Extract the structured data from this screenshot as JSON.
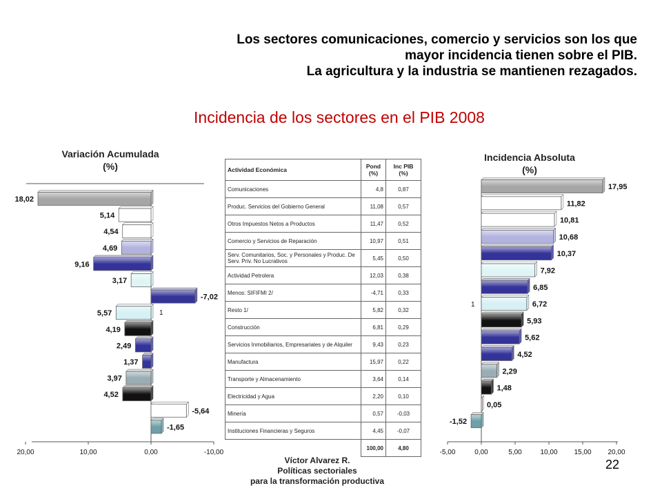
{
  "headline": [
    "Los sectores comunicaciones, comercio y servicios son los que",
    "mayor incidencia tienen sobre el PIB.",
    "La agricultura y la industria se mantienen rezagados."
  ],
  "subtitle": "Incidencia de los sectores en el PIB 2008",
  "chart_data": [
    {
      "type": "bar",
      "orientation": "horizontal",
      "title": "Variación Acumulada (%)",
      "x_axis_reversed": true,
      "xlim": [
        -10,
        20
      ],
      "tick_labels": [
        "20,00",
        "10,00",
        "0,00",
        "-10,00"
      ],
      "series_label": "1",
      "value_labels": [
        "18,02",
        "5,14",
        "4,54",
        "4,69",
        "9,16",
        "3,17",
        "-7,02",
        "5,57",
        "4,19",
        "2,49",
        "1,37",
        "3,97",
        "4,52",
        "-5,64",
        "-1,65"
      ],
      "values": [
        18.02,
        5.14,
        4.54,
        4.69,
        9.16,
        3.17,
        -7.02,
        5.57,
        4.19,
        2.49,
        1.37,
        3.97,
        4.52,
        -5.64,
        -1.65
      ],
      "colors": [
        "#a6a6a6",
        "#ffffff",
        "#ffffff",
        "#b3b3df",
        "#333399",
        "#dff5f5",
        "#333399",
        "#d6f0f4",
        "#111111",
        "#333399",
        "#333399",
        "#9aacb4",
        "#111111",
        "#ffffff",
        "#6f9fa9"
      ]
    },
    {
      "type": "bar",
      "orientation": "horizontal",
      "title": "Incidencia Absoluta (%)",
      "xlim": [
        -5,
        20
      ],
      "tick_labels": [
        "-5,00",
        "0,00",
        "5,00",
        "10,00",
        "15,00",
        "20,00"
      ],
      "series_label": "1",
      "value_labels": [
        "17,95",
        "11,82",
        "10,81",
        "10,68",
        "10,37",
        "7,92",
        "6,85",
        "6,72",
        "5,93",
        "5,62",
        "4,52",
        "2,29",
        "1,48",
        "0,05",
        "-1,52"
      ],
      "values": [
        17.95,
        11.82,
        10.81,
        10.68,
        10.37,
        7.92,
        6.85,
        6.72,
        5.93,
        5.62,
        4.52,
        2.29,
        1.48,
        0.05,
        -1.52
      ],
      "colors": [
        "#a6a6a6",
        "#ffffff",
        "#ffffff",
        "#b3b3df",
        "#333399",
        "#dff5f5",
        "#333399",
        "#d6f0f4",
        "#111111",
        "#333399",
        "#333399",
        "#9aacb4",
        "#111111",
        "#ffffff",
        "#6f9fa9"
      ]
    },
    {
      "type": "table",
      "columns": [
        "Actividad Económica",
        "Pond (%)",
        "Inc PIB (%)"
      ],
      "rows": [
        [
          "Comunicaciones",
          "4,8",
          "0,87"
        ],
        [
          "Produc. Servicios del Gobierno General",
          "11,08",
          "0,57"
        ],
        [
          "Otros Impuestos Netos a Productos",
          "11,47",
          "0,52"
        ],
        [
          "Comercio y Servicios de Reparación",
          "10,97",
          "0,51"
        ],
        [
          "Serv. Comunitarios, Soc. y Personales y Produc. De Serv. Priv. No Lucrativos",
          "5,45",
          "0,50"
        ],
        [
          "Actividad Petrolera",
          "12,03",
          "0,38"
        ],
        [
          "Menos: SIFIFMI 2/",
          "-4,71",
          "0,33"
        ],
        [
          "Resto 1/",
          "5,82",
          "0,32"
        ],
        [
          "Construcción",
          "6,81",
          "0,29"
        ],
        [
          "Servicios Inmobiliarios, Empresariales y de Alquiler",
          "9,43",
          "0,23"
        ],
        [
          "Manufactura",
          "15,97",
          "0,22"
        ],
        [
          "Transporte y Almacenamiento",
          "3,64",
          "0,14"
        ],
        [
          "Electricidad y Agua",
          "2,20",
          "0,10"
        ],
        [
          "Minería",
          "0,57",
          "-0,03"
        ],
        [
          "Instituciones Financieras y Seguros",
          "4,45",
          "-0,07"
        ]
      ],
      "total": [
        "",
        "100,00",
        "4,80"
      ]
    }
  ],
  "left_chart": {
    "title_line1": "Variación Acumulada",
    "title_line2": "(%)"
  },
  "right_chart": {
    "title_line1": "Incidencia Absoluta",
    "title_line2": "(%)"
  },
  "footer": {
    "author": "Víctor Alvarez R.",
    "line2": "Políticas sectoriales",
    "line3": "para la transformación productiva"
  },
  "page_number": "22"
}
